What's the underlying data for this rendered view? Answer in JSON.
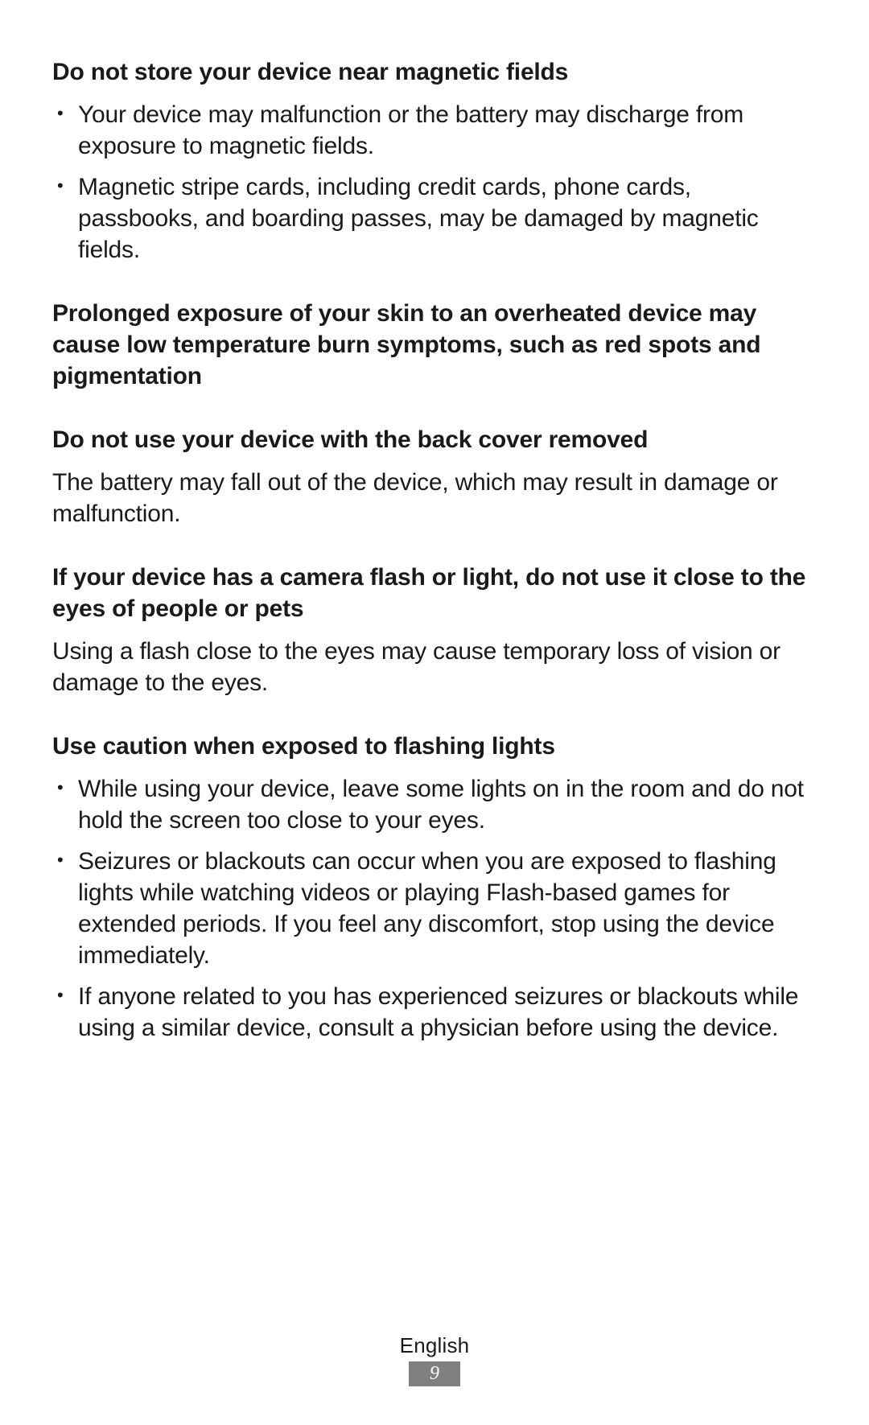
{
  "sections": [
    {
      "heading": "Do not store your device near magnetic fields",
      "bullets": [
        "Your device may malfunction or the battery may discharge from exposure to magnetic fields.",
        "Magnetic stripe cards, including credit cards, phone cards, passbooks, and boarding passes, may be damaged by magnetic fields."
      ]
    },
    {
      "heading": "Prolonged exposure of your skin to an overheated device may cause low temperature burn symptoms, such as red spots and pigmentation"
    },
    {
      "heading": "Do not use your device with the back cover removed",
      "body": "The battery may fall out of the device, which may result in damage or malfunction."
    },
    {
      "heading": "If your device has a camera flash or light, do not use it close to the eyes of people or pets",
      "body": "Using a flash close to the eyes may cause temporary loss of vision or damage to the eyes."
    },
    {
      "heading": "Use caution when exposed to flashing lights",
      "bullets": [
        "While using your device, leave some lights on in the room and do not hold the screen too close to your eyes.",
        "Seizures or blackouts can occur when you are exposed to flashing lights while watching videos or playing Flash-based games for extended periods. If you feel any discomfort, stop using the device immediately.",
        "If anyone related to you has experienced seizures or blackouts while using a similar device, consult a physician before using the device."
      ]
    }
  ],
  "footer": {
    "language": "English",
    "page_number": "9"
  },
  "style": {
    "text_color": "#1a1a1a",
    "background_color": "#ffffff",
    "page_num_bg": "#808080",
    "page_num_color": "#ffffff",
    "body_fontsize": 30,
    "heading_fontweight": 700
  }
}
